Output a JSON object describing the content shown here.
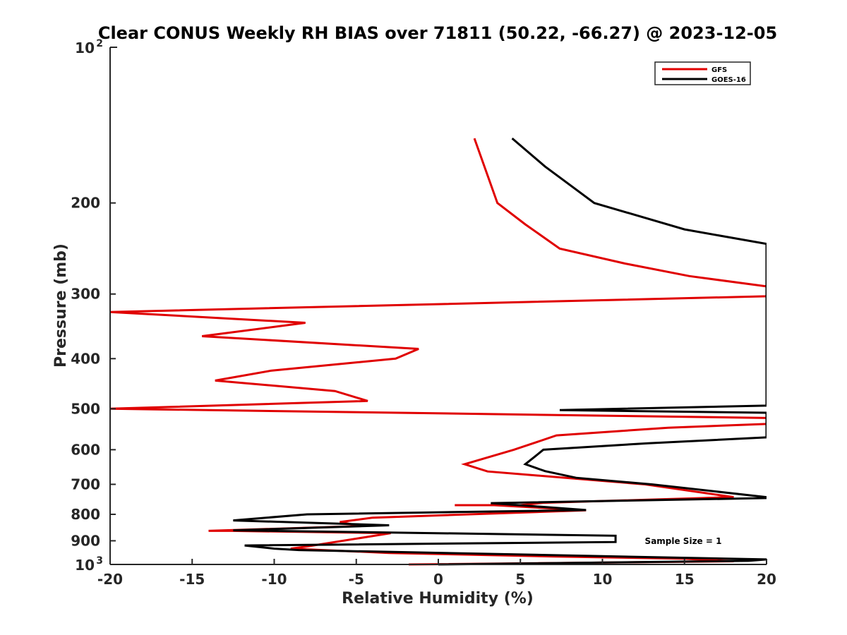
{
  "chart_data": {
    "type": "line",
    "title": "Clear CONUS Weekly RH BIAS over 71811 (50.22, -66.27) @ 2023-12-05",
    "xlabel": "Relative Humidity (%)",
    "ylabel": "Pressure (mb)",
    "xlim": [
      -20,
      20
    ],
    "ylim": [
      100,
      1000
    ],
    "y_scale": "log",
    "y_reversed": true,
    "x_ticks": [
      -20,
      -15,
      -10,
      -5,
      0,
      5,
      10,
      15,
      20
    ],
    "x_tick_labels": [
      "-20",
      "-15",
      "-10",
      "-5",
      "0",
      "5",
      "10",
      "15",
      "20"
    ],
    "y_ticks": [
      200,
      300,
      400,
      500,
      600,
      700,
      800,
      900
    ],
    "y_tick_labels": [
      "200",
      "300",
      "400",
      "500",
      "600",
      "700",
      "800",
      "900"
    ],
    "y_decade_labels": [
      {
        "value": 100,
        "base": "10",
        "exp": "2"
      },
      {
        "value": 1000,
        "base": "10",
        "exp": "3"
      }
    ],
    "grid": false,
    "legend_position": "top-right",
    "annotation": "Sample Size = 1",
    "series": [
      {
        "name": "GFS",
        "color": "#e00000",
        "points": [
          [
            2.2,
            150
          ],
          [
            3.6,
            200
          ],
          [
            5.3,
            220
          ],
          [
            7.4,
            245
          ],
          [
            11.4,
            262
          ],
          [
            15.3,
            277
          ],
          [
            20,
            290
          ],
          [
            20,
            303
          ],
          [
            -20,
            325
          ],
          [
            -8.1,
            341
          ],
          [
            -14.4,
            362
          ],
          [
            -1.2,
            383
          ],
          [
            -2.6,
            400
          ],
          [
            -10.2,
            422
          ],
          [
            -13.6,
            441
          ],
          [
            -6.3,
            462
          ],
          [
            -4.3,
            483
          ],
          [
            -20,
            500
          ],
          [
            20,
            521
          ],
          [
            20,
            535
          ],
          [
            14,
            544
          ],
          [
            7.2,
            563
          ],
          [
            6,
            580
          ],
          [
            4.6,
            600
          ],
          [
            1.6,
            640
          ],
          [
            3,
            661
          ],
          [
            9,
            685
          ],
          [
            12.6,
            700
          ],
          [
            18,
            741
          ],
          [
            6.4,
            760
          ],
          [
            5,
            768
          ],
          [
            1,
            768
          ],
          [
            3.4,
            768
          ],
          [
            9,
            786
          ],
          [
            -4,
            812
          ],
          [
            -6,
            828
          ],
          [
            -4.7,
            843
          ],
          [
            -14,
            861
          ],
          [
            -12.6,
            861
          ],
          [
            -2.9,
            870
          ],
          [
            -8,
            923
          ],
          [
            -9,
            932
          ],
          [
            -3,
            950
          ],
          [
            7,
            965
          ],
          [
            15,
            975
          ],
          [
            18,
            986
          ],
          [
            -1.8,
            1000
          ]
        ]
      },
      {
        "name": "GOES-16",
        "color": "#000000",
        "points": [
          [
            4.5,
            150
          ],
          [
            6.5,
            170
          ],
          [
            9.5,
            200
          ],
          [
            15,
            225
          ],
          [
            20,
            240
          ],
          [
            20,
            493
          ],
          [
            7.4,
            503
          ],
          [
            20,
            509
          ],
          [
            20,
            568
          ],
          [
            12.8,
            583
          ],
          [
            6.4,
            600
          ],
          [
            5.9,
            618
          ],
          [
            5.3,
            640
          ],
          [
            6.5,
            660
          ],
          [
            8.4,
            680
          ],
          [
            13,
            700
          ],
          [
            20,
            741
          ],
          [
            20,
            744
          ],
          [
            3.2,
            761
          ],
          [
            9,
            785
          ],
          [
            -8,
            800
          ],
          [
            -12.5,
            822
          ],
          [
            -3,
            840
          ],
          [
            -12.5,
            859
          ],
          [
            10.8,
            880
          ],
          [
            10.8,
            905
          ],
          [
            -11.8,
            919
          ],
          [
            -10,
            932
          ],
          [
            -8.5,
            938
          ],
          [
            20,
            978
          ],
          [
            18.9,
            984
          ],
          [
            0,
            1000
          ]
        ]
      }
    ]
  }
}
